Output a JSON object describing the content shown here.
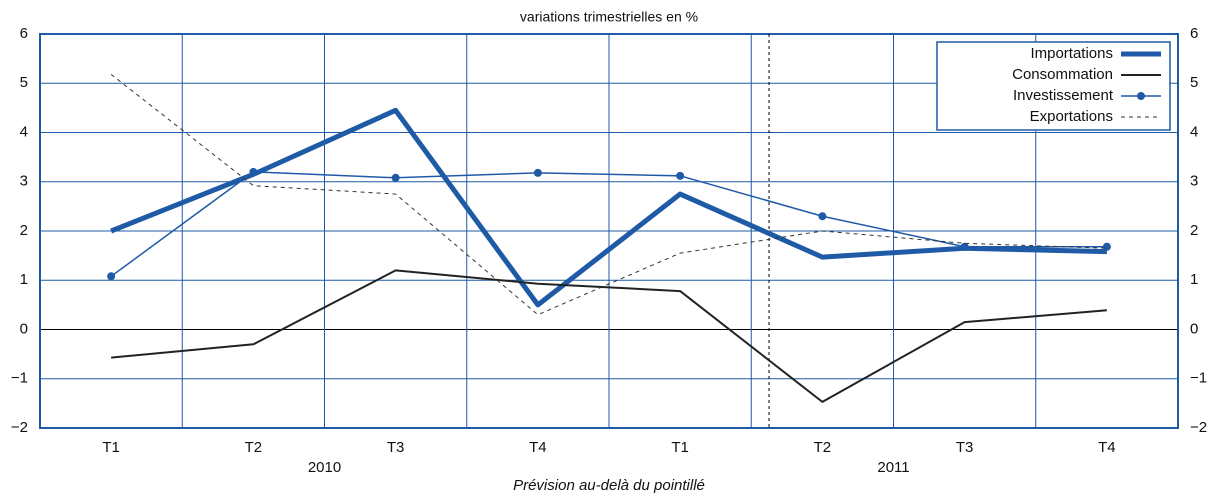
{
  "chart_data": {
    "type": "line",
    "title": "variations trimestrielles en %",
    "x_label": "Prévision au-delà du pointillé",
    "categories": [
      "T1",
      "T2",
      "T3",
      "T4",
      "T1",
      "T2",
      "T3",
      "T4"
    ],
    "year_labels": [
      "2010",
      "2011"
    ],
    "series": [
      {
        "name": "Importations",
        "color": "#1f5aa6",
        "style": "thick",
        "values": [
          2.0,
          3.15,
          4.45,
          0.5,
          2.75,
          1.47,
          1.65,
          1.58
        ]
      },
      {
        "name": "Consommation",
        "color": "#222222",
        "style": "solid",
        "values": [
          -0.57,
          -0.3,
          1.2,
          0.93,
          0.78,
          -1.47,
          0.15,
          0.39
        ]
      },
      {
        "name": "Investissement",
        "color": "#1f5aa6",
        "style": "marker",
        "values": [
          1.08,
          3.2,
          3.08,
          3.18,
          3.12,
          2.3,
          1.68,
          1.68
        ]
      },
      {
        "name": "Exportations",
        "color": "#333333",
        "style": "dashed",
        "values": [
          5.18,
          2.92,
          2.75,
          0.3,
          1.55,
          2.0,
          1.75,
          1.65
        ]
      }
    ],
    "ylim": [
      -2,
      6
    ],
    "yticks": [
      {
        "value": -2,
        "label": "−2"
      },
      {
        "value": -1,
        "label": "−1"
      },
      0,
      1,
      2,
      3,
      4,
      5,
      6
    ],
    "grid": true,
    "grid_color": "#1f5aa6",
    "legend": "top-right"
  }
}
